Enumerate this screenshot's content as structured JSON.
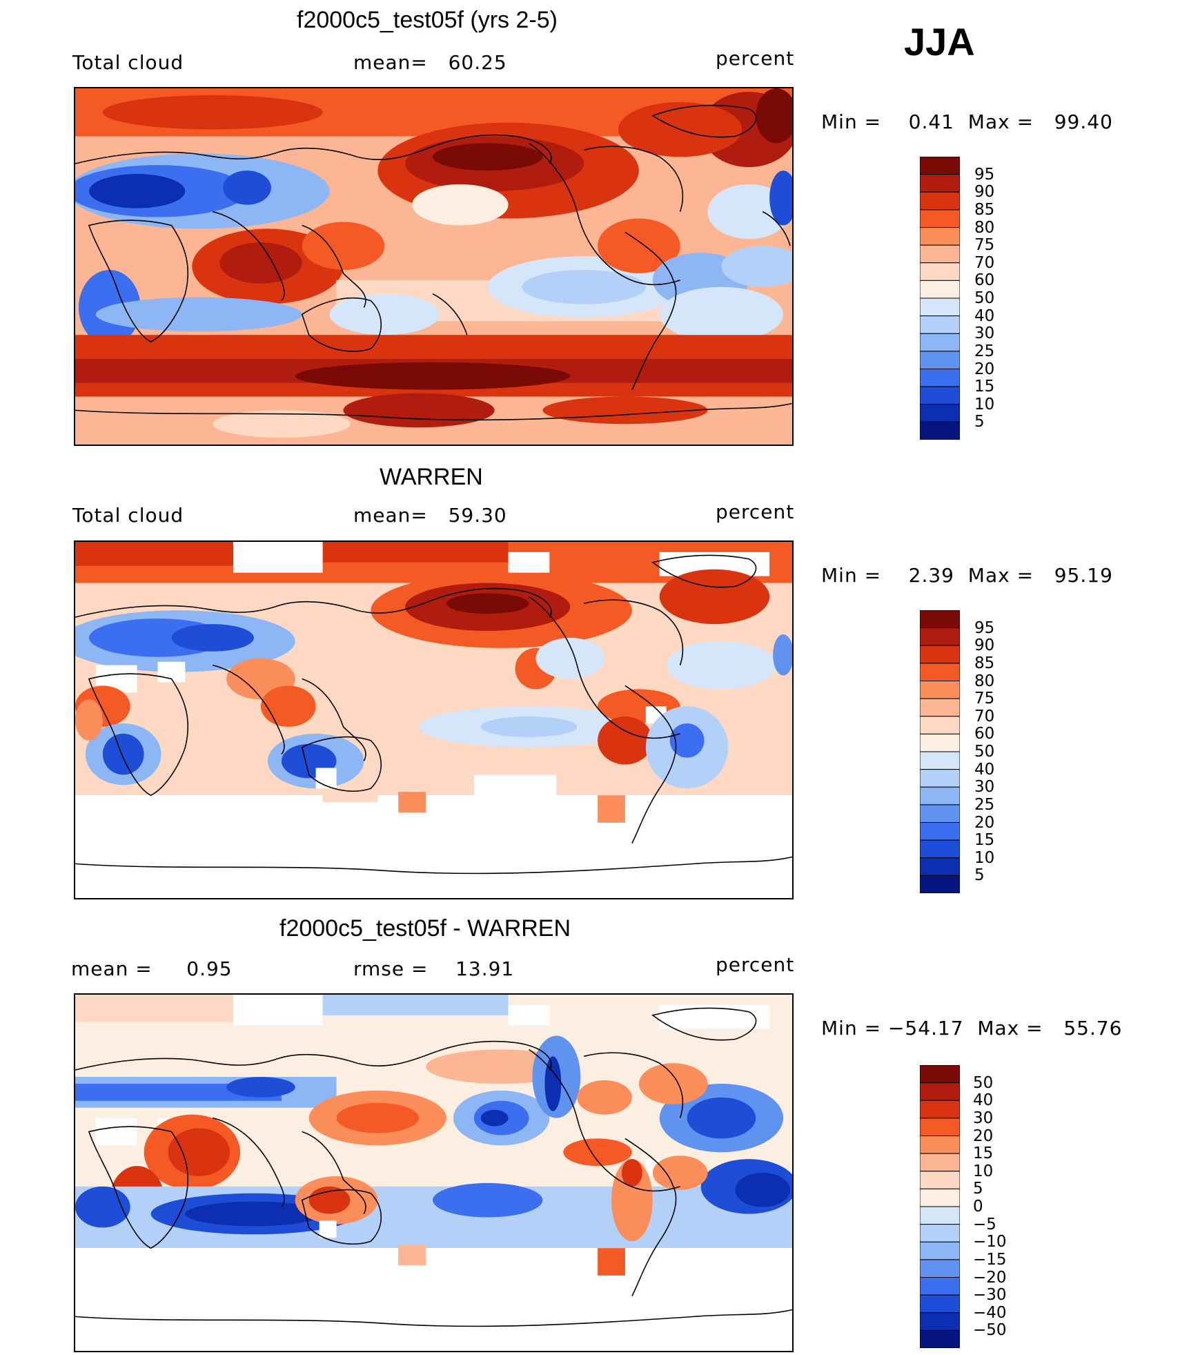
{
  "season": "JJA",
  "panels": [
    {
      "id": "model",
      "title": "f2000c5_test05f (yrs 2-5)",
      "left_label": "Total cloud",
      "mid_label": "mean=   60.25",
      "right_label": "percent",
      "min_max": "Min =    0.41  Max =   99.40",
      "colorbar": {
        "colors": [
          "#7a0a06",
          "#b01c0e",
          "#d9340f",
          "#f55a24",
          "#fc8e5c",
          "#fcb693",
          "#fdd9c3",
          "#fdeee2",
          "#d6e6fa",
          "#b2d0f8",
          "#8db6f4",
          "#5f93ef",
          "#3b6ff0",
          "#1e4ed8",
          "#0c2fb2",
          "#05167f"
        ],
        "labels": [
          "95",
          "90",
          "85",
          "80",
          "75",
          "70",
          "60",
          "50",
          "40",
          "30",
          "25",
          "20",
          "15",
          "10",
          "5"
        ]
      }
    },
    {
      "id": "obs",
      "title": "WARREN",
      "left_label": "Total cloud",
      "mid_label": "mean=   59.30",
      "right_label": "percent",
      "min_max": "Min =    2.39  Max =   95.19",
      "colorbar": {
        "colors": [
          "#7a0a06",
          "#b01c0e",
          "#d9340f",
          "#f55a24",
          "#fc8e5c",
          "#fcb693",
          "#fdd9c3",
          "#fdeee2",
          "#d6e6fa",
          "#b2d0f8",
          "#8db6f4",
          "#5f93ef",
          "#3b6ff0",
          "#1e4ed8",
          "#0c2fb2",
          "#05167f"
        ],
        "labels": [
          "95",
          "90",
          "85",
          "80",
          "75",
          "70",
          "60",
          "50",
          "40",
          "30",
          "25",
          "20",
          "15",
          "10",
          "5"
        ]
      }
    },
    {
      "id": "diff",
      "title": "f2000c5_test05f - WARREN",
      "left_label": "mean =     0.95",
      "mid_label": "rmse =    13.91",
      "right_label": "percent",
      "min_max": "Min = −54.17  Max =   55.76",
      "colorbar": {
        "colors": [
          "#7a0a06",
          "#b01c0e",
          "#d9340f",
          "#f55a24",
          "#fc8e5c",
          "#fcb693",
          "#fdd9c3",
          "#fdeee2",
          "#d6e6fa",
          "#b2d0f8",
          "#8db6f4",
          "#5f93ef",
          "#3b6ff0",
          "#1e4ed8",
          "#0c2fb2",
          "#05167f"
        ],
        "labels": [
          "50",
          "40",
          "30",
          "20",
          "15",
          "10",
          "5",
          "0",
          "−5",
          "−10",
          "−15",
          "−20",
          "−30",
          "−40",
          "−50"
        ]
      }
    }
  ]
}
